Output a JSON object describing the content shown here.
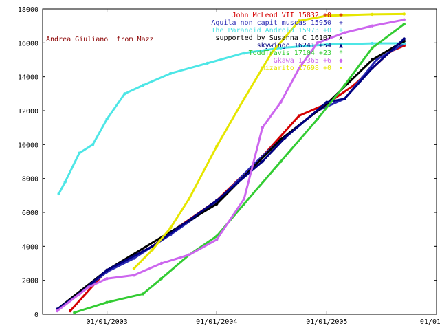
{
  "chart_data": {
    "type": "scatter",
    "title": "",
    "xlabel": "",
    "ylabel": "",
    "x_range": [
      "2002-06-01",
      "2006-01-01"
    ],
    "ylim": [
      0,
      18000
    ],
    "y_ticks": [
      0,
      2000,
      4000,
      6000,
      8000,
      10000,
      12000,
      14000,
      16000,
      18000
    ],
    "x_ticks": [
      {
        "date": "2003-01-01",
        "label": "01/01/2003"
      },
      {
        "date": "2004-01-01",
        "label": "01/01/2004"
      },
      {
        "date": "2005-01-01",
        "label": "01/01/2005"
      },
      {
        "date": "2006-01-01",
        "label": "01/01/20"
      }
    ],
    "grid": false,
    "legend_position": "top-right",
    "annotation": "Andrea Giuliano  from Mazz",
    "series": [
      {
        "name": "John McLeod VII 15832 +0",
        "marker": "+",
        "color": "#d40000",
        "points": [
          [
            "2002-09-01",
            200
          ],
          [
            "2003-01-01",
            2600
          ],
          [
            "2003-06-01",
            4000
          ],
          [
            "2003-09-01",
            5200
          ],
          [
            "2004-01-01",
            6700
          ],
          [
            "2004-06-01",
            9300
          ],
          [
            "2004-10-01",
            11700
          ],
          [
            "2005-01-01",
            12400
          ],
          [
            "2005-04-01",
            13500
          ],
          [
            "2005-08-01",
            15500
          ],
          [
            "2005-09-15",
            15832
          ]
        ]
      },
      {
        "name": "Aquila non capit muscas 15950",
        "marker": "+",
        "color": "#2a2ab4",
        "points": [
          [
            "2002-07-20",
            300
          ],
          [
            "2002-10-01",
            1200
          ],
          [
            "2003-01-01",
            2500
          ],
          [
            "2003-04-01",
            3300
          ],
          [
            "2003-08-01",
            4700
          ],
          [
            "2004-01-01",
            6600
          ],
          [
            "2004-05-01",
            8800
          ],
          [
            "2004-08-01",
            10300
          ],
          [
            "2004-12-01",
            12000
          ],
          [
            "2005-03-01",
            12700
          ],
          [
            "2005-05-01",
            14000
          ],
          [
            "2005-06-15",
            15000
          ],
          [
            "2005-09-15",
            15950
          ]
        ]
      },
      {
        "name": "The Paranoid Android 15973 +0",
        "marker": "+",
        "color": "#4de6e6",
        "points": [
          [
            "2002-07-25",
            7100
          ],
          [
            "2002-08-15",
            7800
          ],
          [
            "2002-10-01",
            9500
          ],
          [
            "2002-11-15",
            10000
          ],
          [
            "2003-01-01",
            11500
          ],
          [
            "2003-03-01",
            13000
          ],
          [
            "2003-05-01",
            13500
          ],
          [
            "2003-08-01",
            14200
          ],
          [
            "2003-12-01",
            14800
          ],
          [
            "2004-04-01",
            15400
          ],
          [
            "2004-08-01",
            15700
          ],
          [
            "2005-01-01",
            15900
          ],
          [
            "2005-06-01",
            15970
          ],
          [
            "2005-09-15",
            15973
          ]
        ]
      },
      {
        "name": "supported by Susanna C 16107",
        "marker": "x",
        "color": "#000000",
        "points": [
          [
            "2002-07-20",
            300
          ],
          [
            "2003-01-01",
            2600
          ],
          [
            "2004-01-01",
            6500
          ],
          [
            "2004-08-01",
            10300
          ],
          [
            "2005-01-01",
            12400
          ],
          [
            "2005-06-01",
            15000
          ],
          [
            "2005-09-15",
            16107
          ]
        ]
      },
      {
        "name": "skywingo 16241 +54",
        "marker": "▲",
        "color": "#000080",
        "points": [
          [
            "2002-07-20",
            300
          ],
          [
            "2002-10-01",
            1200
          ],
          [
            "2003-01-01",
            2600
          ],
          [
            "2003-06-01",
            4000
          ],
          [
            "2004-01-01",
            6700
          ],
          [
            "2004-06-01",
            9000
          ],
          [
            "2004-08-15",
            10400
          ],
          [
            "2005-01-01",
            12500
          ],
          [
            "2005-03-01",
            12700
          ],
          [
            "2005-06-01",
            14500
          ],
          [
            "2005-09-15",
            16241
          ]
        ]
      },
      {
        "name": "ToddTravis 17104 +23",
        "marker": "*",
        "color": "#33cc33",
        "points": [
          [
            "2002-09-15",
            100
          ],
          [
            "2003-01-01",
            700
          ],
          [
            "2003-05-01",
            1200
          ],
          [
            "2003-07-01",
            2100
          ],
          [
            "2003-10-01",
            3500
          ],
          [
            "2004-01-01",
            4600
          ],
          [
            "2004-04-01",
            6500
          ],
          [
            "2004-08-01",
            9000
          ],
          [
            "2004-12-01",
            11500
          ],
          [
            "2005-03-01",
            13500
          ],
          [
            "2005-06-01",
            15700
          ],
          [
            "2005-09-15",
            17104
          ]
        ]
      },
      {
        "name": "Gkawa 17365 +6",
        "marker": "◆",
        "color": "#cc66ee",
        "points": [
          [
            "2002-07-20",
            200
          ],
          [
            "2002-11-01",
            1600
          ],
          [
            "2003-01-01",
            2100
          ],
          [
            "2003-04-01",
            2300
          ],
          [
            "2003-07-01",
            3000
          ],
          [
            "2003-10-01",
            3500
          ],
          [
            "2004-01-01",
            4400
          ],
          [
            "2004-04-01",
            6800
          ],
          [
            "2004-06-01",
            11000
          ],
          [
            "2004-08-01",
            12500
          ],
          [
            "2004-10-01",
            14500
          ],
          [
            "2004-12-01",
            16000
          ],
          [
            "2005-03-01",
            16600
          ],
          [
            "2005-06-01",
            17000
          ],
          [
            "2005-09-15",
            17365
          ]
        ]
      },
      {
        "name": "mizarito 17698 +0",
        "marker": "•",
        "color": "#e6e600",
        "points": [
          [
            "2003-04-01",
            2700
          ],
          [
            "2003-06-01",
            3800
          ],
          [
            "2003-08-01",
            5100
          ],
          [
            "2003-10-01",
            6800
          ],
          [
            "2004-01-01",
            9900
          ],
          [
            "2004-04-01",
            12700
          ],
          [
            "2004-07-01",
            15400
          ],
          [
            "2004-10-01",
            17300
          ],
          [
            "2005-01-01",
            17600
          ],
          [
            "2005-06-01",
            17680
          ],
          [
            "2005-09-15",
            17698
          ]
        ]
      }
    ]
  }
}
